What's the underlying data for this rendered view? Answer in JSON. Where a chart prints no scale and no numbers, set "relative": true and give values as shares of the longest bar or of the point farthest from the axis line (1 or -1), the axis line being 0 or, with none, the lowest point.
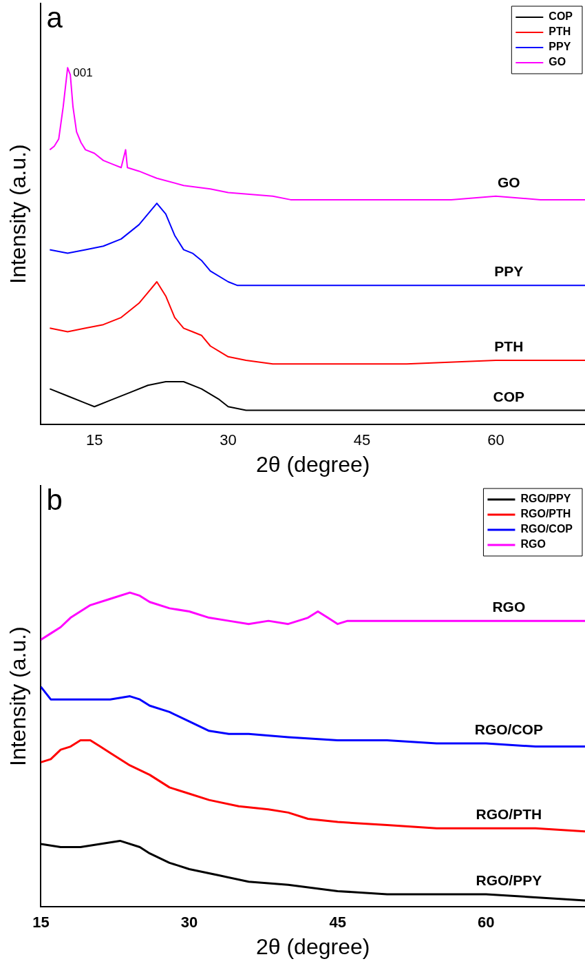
{
  "chart_data": [
    {
      "type": "line",
      "xlabel": "2θ (degree)",
      "ylabel": "Intensity (a.u.)",
      "relative": true,
      "xlim": [
        9,
        70
      ],
      "xticks": [
        15,
        30,
        45,
        60
      ],
      "grid": false,
      "legend": "top right",
      "marker": "none",
      "line_style": "solid",
      "annotations": [
        "a",
        "001",
        "GO",
        "PPY",
        "PTH",
        "COP"
      ],
      "series": [
        {
          "name": "COP",
          "color": "#000000",
          "x": [
            10,
            12,
            14,
            15,
            17,
            19,
            21,
            23,
            25,
            27,
            29,
            30,
            32,
            35,
            40,
            50,
            60,
            70
          ],
          "values": [
            0.1,
            0.08,
            0.06,
            0.05,
            0.07,
            0.09,
            0.11,
            0.12,
            0.12,
            0.1,
            0.07,
            0.05,
            0.04,
            0.04,
            0.04,
            0.04,
            0.04,
            0.04
          ]
        },
        {
          "name": "PTH",
          "color": "#ff0000",
          "x": [
            10,
            12,
            14,
            16,
            18,
            20,
            21,
            22,
            23,
            24,
            25,
            26,
            27,
            28,
            30,
            32,
            35,
            40,
            50,
            60,
            70
          ],
          "values": [
            0.27,
            0.26,
            0.27,
            0.28,
            0.3,
            0.34,
            0.37,
            0.4,
            0.36,
            0.3,
            0.27,
            0.26,
            0.25,
            0.22,
            0.19,
            0.18,
            0.17,
            0.17,
            0.17,
            0.18,
            0.18
          ]
        },
        {
          "name": "PPY",
          "color": "#0000ff",
          "x": [
            10,
            12,
            14,
            16,
            18,
            20,
            21,
            22,
            23,
            24,
            25,
            26,
            27,
            28,
            30,
            31,
            33,
            40,
            50,
            60,
            70
          ],
          "values": [
            0.49,
            0.48,
            0.49,
            0.5,
            0.52,
            0.56,
            0.59,
            0.62,
            0.59,
            0.53,
            0.49,
            0.48,
            0.46,
            0.43,
            0.4,
            0.39,
            0.39,
            0.39,
            0.39,
            0.39,
            0.39
          ]
        },
        {
          "name": "GO",
          "color": "#ff00ff",
          "x": [
            10,
            10.5,
            11,
            11.5,
            12,
            12.3,
            12.6,
            13,
            13.5,
            14,
            15,
            16,
            17,
            18,
            18.5,
            18.7,
            20,
            22,
            25,
            28,
            30,
            35,
            37,
            40,
            45,
            50,
            55,
            60,
            65,
            70
          ],
          "values": [
            0.77,
            0.78,
            0.8,
            0.89,
            1,
            0.98,
            0.89,
            0.82,
            0.79,
            0.77,
            0.76,
            0.74,
            0.73,
            0.72,
            0.77,
            0.72,
            0.71,
            0.69,
            0.67,
            0.66,
            0.65,
            0.64,
            0.63,
            0.63,
            0.63,
            0.63,
            0.63,
            0.64,
            0.63,
            0.63
          ]
        }
      ]
    },
    {
      "type": "line",
      "xlabel": "2θ (degree)",
      "ylabel": "Intensity (a.u.)",
      "relative": true,
      "xlim": [
        15,
        70
      ],
      "xticks": [
        15,
        30,
        45,
        60
      ],
      "grid": false,
      "legend": "top right",
      "marker": "none",
      "line_style": "solid",
      "annotations": [
        "b",
        "RGO",
        "RGO/COP",
        "RGO/PTH",
        "RGO/PPY"
      ],
      "series": [
        {
          "name": "RGO/PPY",
          "color": "#000000",
          "x": [
            15,
            17,
            19,
            21,
            23,
            25,
            26,
            28,
            30,
            33,
            36,
            40,
            45,
            50,
            55,
            60,
            65,
            70
          ],
          "values": [
            0.2,
            0.19,
            0.19,
            0.2,
            0.21,
            0.19,
            0.17,
            0.14,
            0.12,
            0.1,
            0.08,
            0.07,
            0.05,
            0.04,
            0.04,
            0.04,
            0.03,
            0.02
          ]
        },
        {
          "name": "RGO/PTH",
          "color": "#ff0000",
          "x": [
            15,
            16,
            17,
            18,
            19,
            20,
            21,
            22,
            24,
            26,
            28,
            30,
            32,
            35,
            38,
            40,
            42,
            45,
            50,
            55,
            60,
            65,
            70
          ],
          "values": [
            0.46,
            0.47,
            0.5,
            0.51,
            0.53,
            0.53,
            0.51,
            0.49,
            0.45,
            0.42,
            0.38,
            0.36,
            0.34,
            0.32,
            0.31,
            0.3,
            0.28,
            0.27,
            0.26,
            0.25,
            0.25,
            0.25,
            0.24
          ]
        },
        {
          "name": "RGO/COP",
          "color": "#0000ff",
          "x": [
            15,
            16,
            18,
            20,
            22,
            24,
            25,
            26,
            28,
            30,
            32,
            34,
            36,
            40,
            45,
            50,
            55,
            60,
            65,
            70
          ],
          "values": [
            0.7,
            0.66,
            0.66,
            0.66,
            0.66,
            0.67,
            0.66,
            0.64,
            0.62,
            0.59,
            0.56,
            0.55,
            0.55,
            0.54,
            0.53,
            0.53,
            0.52,
            0.52,
            0.51,
            0.51
          ]
        },
        {
          "name": "RGO",
          "color": "#ff00ff",
          "x": [
            15,
            16,
            17,
            18,
            20,
            22,
            24,
            25,
            26,
            28,
            30,
            32,
            34,
            36,
            38,
            40,
            42,
            43,
            44,
            45,
            46,
            50,
            55,
            60,
            65,
            70
          ],
          "values": [
            0.85,
            0.87,
            0.89,
            0.92,
            0.96,
            0.98,
            1,
            0.99,
            0.97,
            0.95,
            0.94,
            0.92,
            0.91,
            0.9,
            0.91,
            0.9,
            0.92,
            0.94,
            0.92,
            0.9,
            0.91,
            0.91,
            0.91,
            0.91,
            0.91,
            0.91
          ]
        }
      ]
    }
  ]
}
